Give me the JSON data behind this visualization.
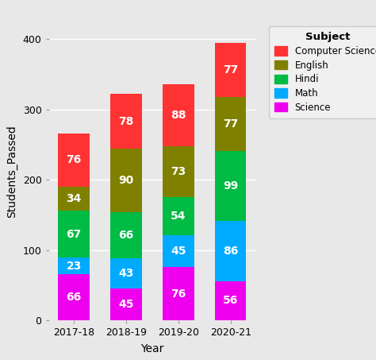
{
  "years": [
    "2017-18",
    "2018-19",
    "2019-20",
    "2020-21"
  ],
  "subjects": [
    "Science",
    "Math",
    "Hindi",
    "English",
    "Computer Science"
  ],
  "values": {
    "Science": [
      66,
      45,
      76,
      56
    ],
    "Math": [
      23,
      43,
      45,
      86
    ],
    "Hindi": [
      67,
      66,
      54,
      99
    ],
    "English": [
      34,
      90,
      73,
      77
    ],
    "Computer Science": [
      76,
      78,
      88,
      77
    ]
  },
  "colors": {
    "Science": "#EE00EE",
    "Math": "#00AAFF",
    "Hindi": "#00BB44",
    "English": "#808000",
    "Computer Science": "#FF3333"
  },
  "xlabel": "Year",
  "ylabel": "Students_Passed",
  "legend_title": "Subject",
  "ylim": [
    0,
    425
  ],
  "yticks": [
    0,
    100,
    200,
    300,
    400
  ],
  "bg_color": "#E8E8E8",
  "grid_color": "#FFFFFF",
  "label_fontsize": 10,
  "tick_fontsize": 9,
  "legend_fontsize": 8.5,
  "bar_width": 0.6
}
